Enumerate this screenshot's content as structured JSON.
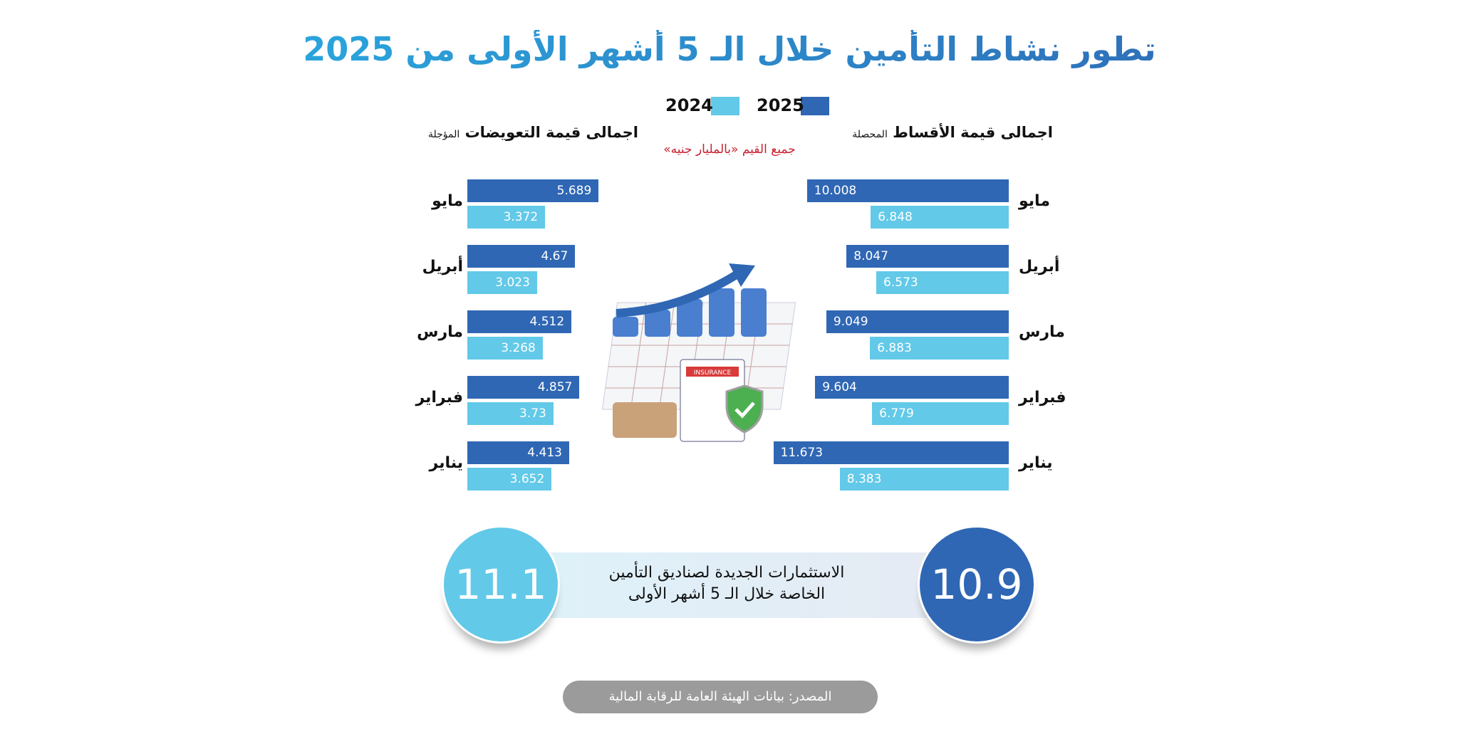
{
  "title": "تطور نشاط التأمين خلال الـ 5 أشهر الأولى من 2025",
  "legend": [
    {
      "label": "2025",
      "color": "#2f67b4"
    },
    {
      "label": "2024",
      "color": "#62c9e8"
    }
  ],
  "note": "جميع القيم «بالمليار جنيه»",
  "chart_data": [
    {
      "type": "bar",
      "orientation": "horizontal",
      "title": "اجمالى قيمة الأقساط المحصلة",
      "categories": [
        "مايو",
        "أبريل",
        "مارس",
        "فبراير",
        "يناير"
      ],
      "series": [
        {
          "name": "2025",
          "values": [
            10.008,
            8.047,
            9.049,
            9.604,
            11.673
          ]
        },
        {
          "name": "2024",
          "values": [
            6.848,
            6.573,
            6.883,
            6.779,
            8.383
          ]
        }
      ]
    },
    {
      "type": "bar",
      "orientation": "horizontal",
      "title": "اجمالى قيمة التعويضات المؤجلة",
      "categories": [
        "مايو",
        "أبريل",
        "مارس",
        "فبراير",
        "يناير"
      ],
      "series": [
        {
          "name": "2025",
          "values": [
            5.689,
            4.67,
            4.512,
            4.857,
            4.413
          ]
        },
        {
          "name": "2024",
          "values": [
            3.372,
            3.023,
            3.268,
            3.73,
            3.652
          ]
        }
      ]
    }
  ],
  "headers": {
    "premiums_main": "اجمالى قيمة الأقساط",
    "premiums_sub": "المحصلة",
    "claims_main": "اجمالى قيمة التعويضات",
    "claims_sub": "المؤجلة"
  },
  "illustration": {
    "label": "INSURANCE"
  },
  "investments": {
    "text_line1": "الاستثمارات الجديدة لصناديق التأمين",
    "text_line2": "الخاصة خلال الـ 5 أشهر الأولى",
    "value_2025": "10.9",
    "value_2024": "11.1"
  },
  "source": "المصدر: بيانات الهيئة العامة للرقابة المالية"
}
